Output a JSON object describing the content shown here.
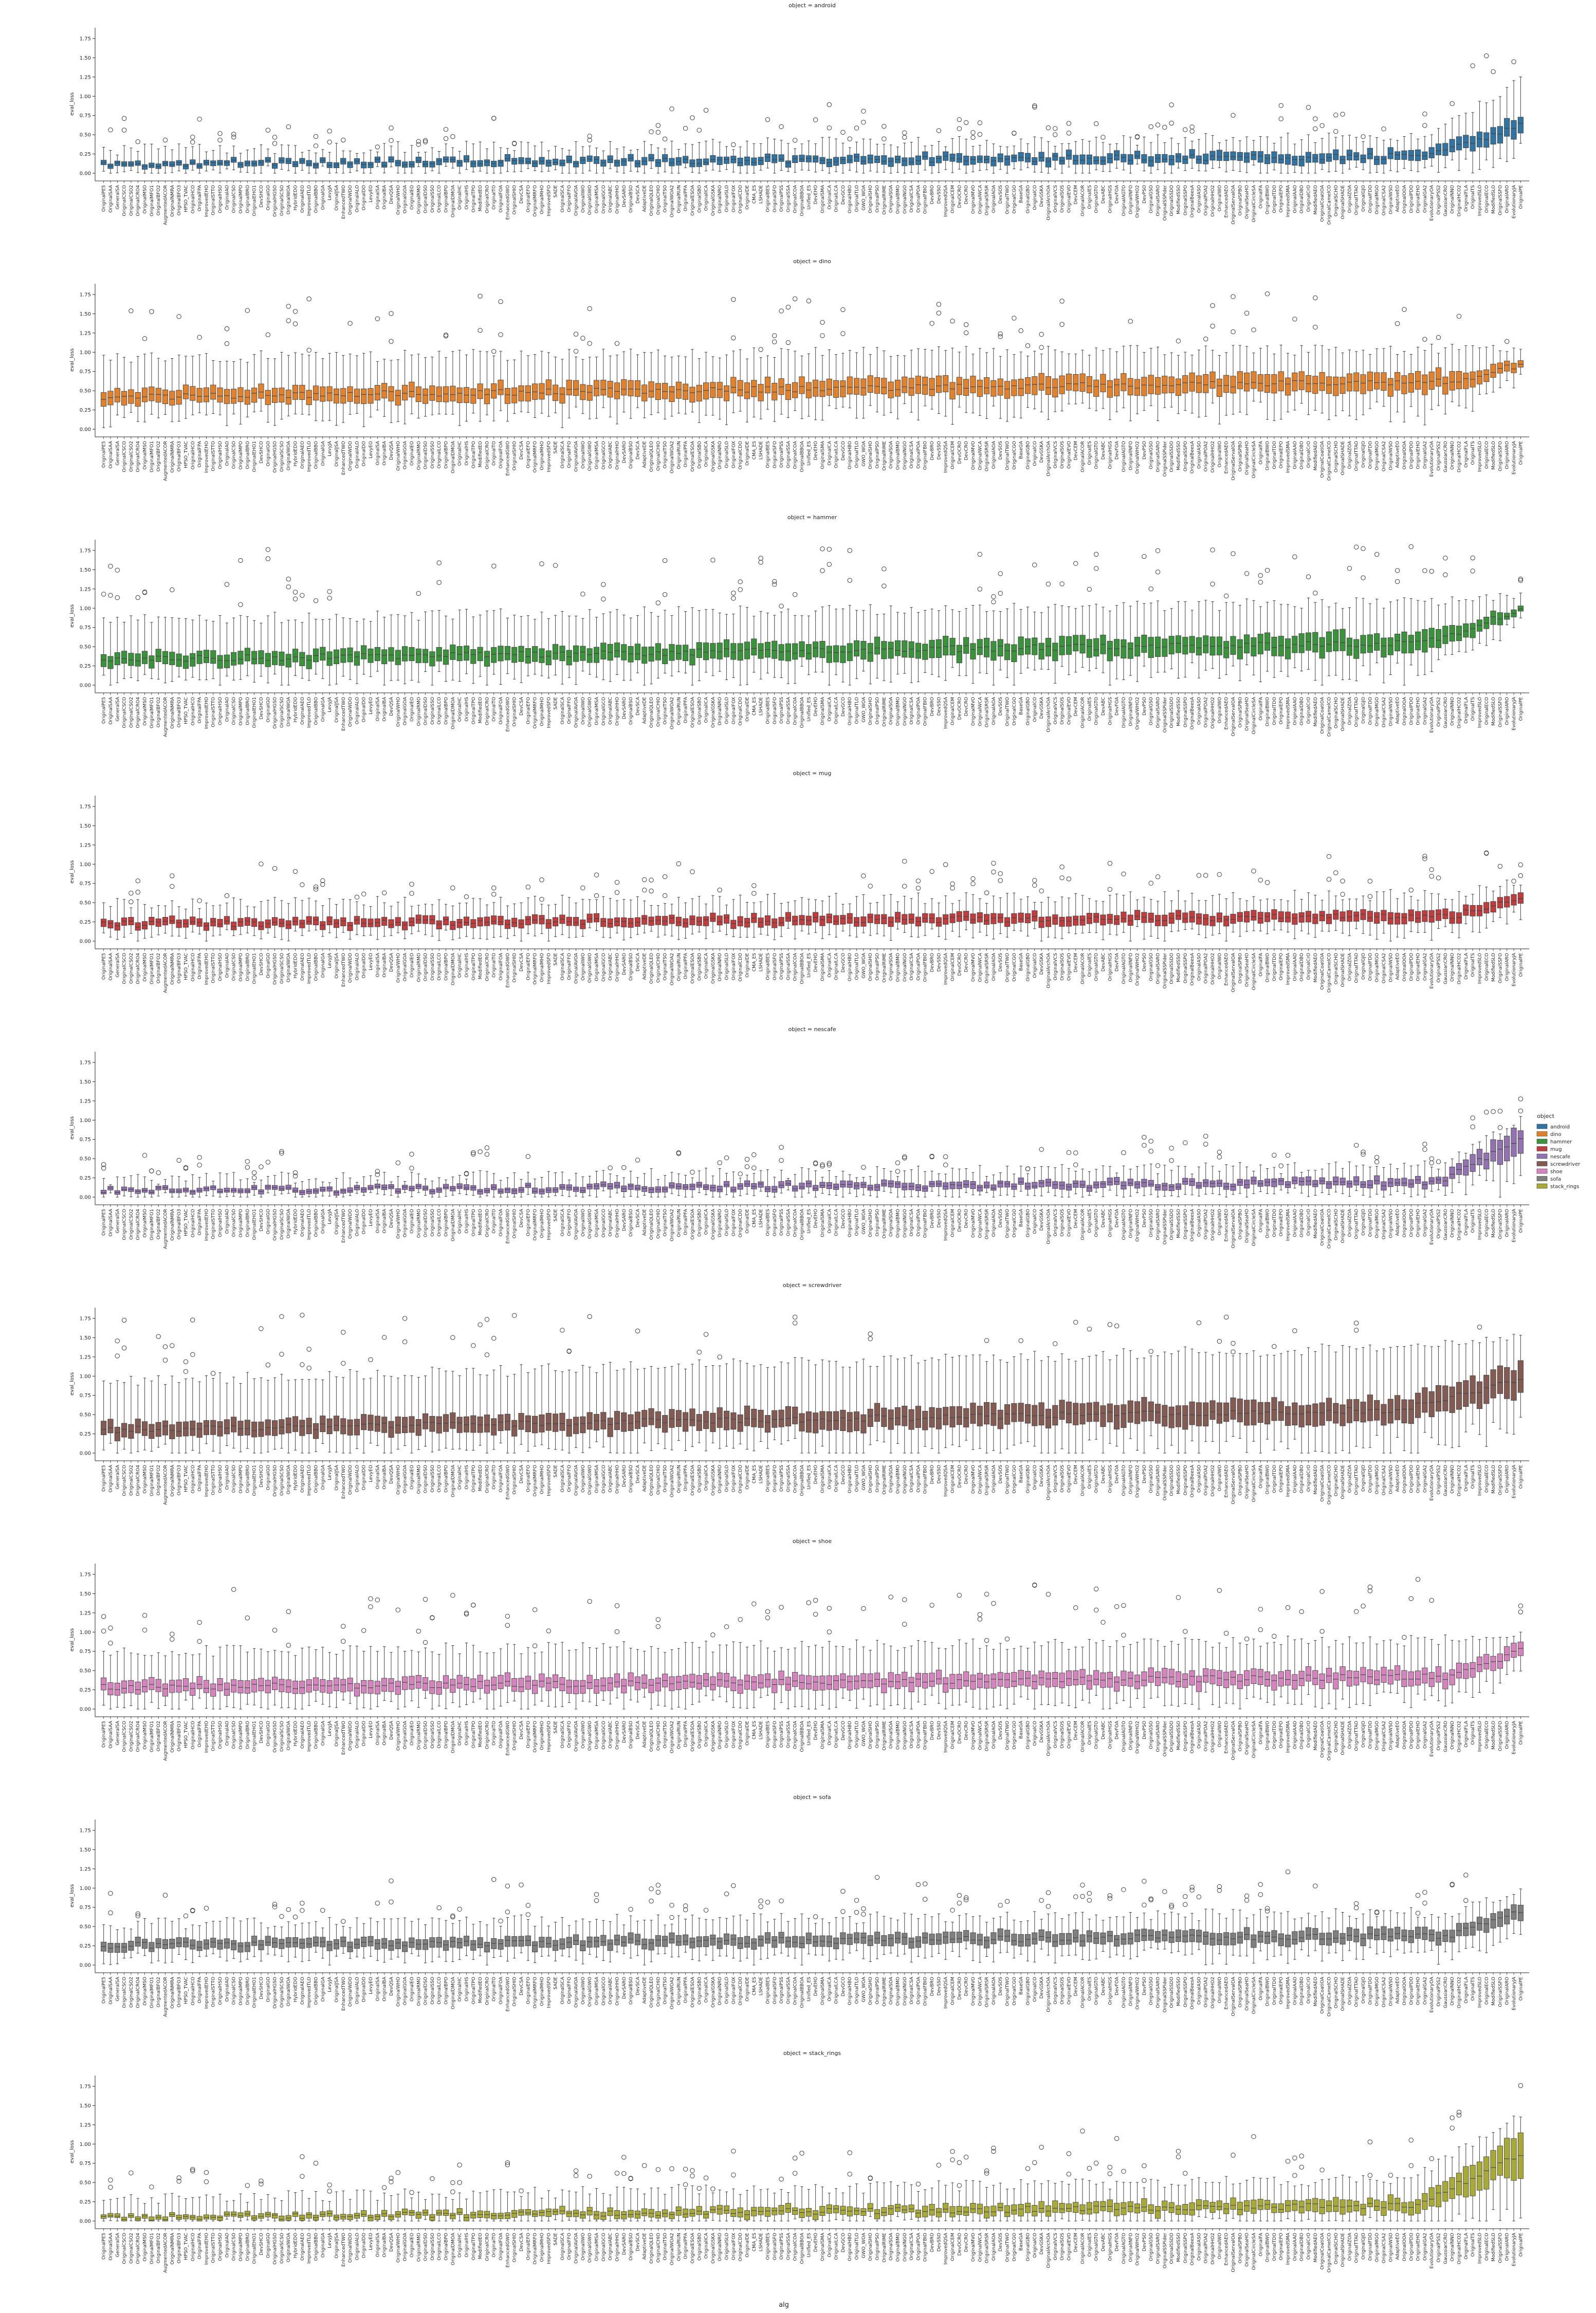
{
  "figure": {
    "xlabel": "alg",
    "ylabel": "eval_loss",
    "yticks": [
      "0.00",
      "0.25",
      "0.50",
      "0.75",
      "1.00",
      "1.25",
      "1.50",
      "1.75"
    ],
    "legend_title": "object",
    "legend_placement": "right"
  },
  "algs": [
    "OriginalPE5",
    "OriginalSAA",
    "GeneralSA",
    "OriginalCSCO",
    "OriginalCSO2",
    "OriginalCRO4",
    "OriginalMSO",
    "OriginalMFO1",
    "OriginalBFO2",
    "AugmentedACOR",
    "OriginalNMRA",
    "OriginalBFO3",
    "HPSO_TVAC",
    "OriginalHCO",
    "OriginalFPA",
    "ImprovedEHO",
    "OriginalSTTO",
    "OriginalHSO",
    "OriginalAO",
    "OriginalCSO",
    "OriginalMPO",
    "OriginalBRO",
    "OriginalEHO1",
    "DevSHCO",
    "OriginalGO",
    "OriginalHGSO",
    "OriginalSCSO",
    "OriginalWOA",
    "HybridEDO",
    "OriginalAEO",
    "ImprovedTLO",
    "OriginalBBO",
    "OriginalGA",
    "LevyJA",
    "OriginalJSA",
    "EnhancedTWO",
    "OriginalWDO",
    "OriginalALO",
    "OriginalDO",
    "LevyEO",
    "OriginalSA",
    "OriginalBA",
    "DevQSA",
    "OriginalWHO",
    "OriginalGOA",
    "OriginalEO",
    "OriginalRMO",
    "OriginalDSO",
    "OriginalSSO",
    "OriginalLCO",
    "OriginalBPO",
    "OriginalDMOA",
    "OriginalHC",
    "OriginalHS",
    "OriginalTPO",
    "ModifiedEO",
    "OriginalCRO",
    "OriginalTO",
    "OriginalFOA",
    "EnhancedGWO",
    "OriginalSHIO",
    "DevCSA",
    "OriginalEFO",
    "OriginalMRFO",
    "OriginalMHO",
    "ImprovedSFO",
    "SADE",
    "OriginalSCA",
    "OriginalFFO",
    "OriginalAVOA",
    "OriginalIWO",
    "OriginalGWO",
    "OriginalMSA",
    "OriginalGCO",
    "OriginalABC",
    "OriginalHHO",
    "DevSARO",
    "OriginalBSO",
    "DevSCA",
    "AdaptiveDE",
    "OriginalQLEO",
    "OriginalCHIO",
    "OriginalTSO",
    "OriginalWOA2",
    "OriginalRUN",
    "OriginalPFA",
    "OriginalESOA",
    "OriginalSBO",
    "OriginalICA",
    "OriginalGSKA",
    "OriginalNRO",
    "OriginalSLO",
    "OriginalFOX",
    "OriginalCDO",
    "OriginalDE",
    "CMA_ES",
    "LSHADE",
    "OriginalBES",
    "OriginalSFO",
    "OriginalPSS",
    "OriginalSSA",
    "OriginalCOA",
    "OriginalBBOA",
    "Unified_ES",
    "DevEHO",
    "OriginalSMA",
    "OriginalCA",
    "OriginalLCA",
    "DevGCO",
    "OriginalHBO",
    "OriginalTLO",
    "GWO_WOA",
    "OriginalSHO",
    "OriginalPSO",
    "OriginalRIME",
    "OriginalSOA",
    "OriginalBMO",
    "OriginalNGO",
    "OriginalCSA",
    "OriginalPOA",
    "OriginalFBIO",
    "DevBRO",
    "DevSSO",
    "ImprovedQSA",
    "OriginalCEM",
    "DevOCRO",
    "DevCRO",
    "OriginalMVO",
    "OriginalWCA",
    "OriginalSRSR",
    "OriginalAOA",
    "DevSOS",
    "OriginalTWO",
    "OriginalCGO",
    "BaseGA",
    "OriginalGBO",
    "OriginalCO",
    "DevGSKA",
    "OriginalArchOA",
    "OriginalVCS",
    "OriginalSOS",
    "OriginalEVO",
    "DevCEM",
    "OriginalACOR",
    "OriginalES",
    "OriginalGTO",
    "DevABC",
    "OriginalHGS",
    "DevFOA",
    "OriginalAGTO",
    "OriginalINFO",
    "OriginalWHO2",
    "DevPSO",
    "OriginalGSO",
    "OriginalSARO",
    "OriginalSSPider",
    "OriginalSSDO",
    "ModifiedSSO",
    "OriginalSSPO",
    "OriginalBeesA",
    "OriginalASO",
    "OriginalPOA2",
    "OriginalHHO2",
    "OriginalWO",
    "EnhancedAEO",
    "OriginalServalOA",
    "OriginalSPBO",
    "OriginalSeaHO",
    "OriginalCircleSA",
    "OriginalFA",
    "OriginalBWO",
    "OriginalTDO",
    "OriginalEPO",
    "ImprovedSMA",
    "OriginalAAO",
    "OriginalDBO",
    "OriginalCrO",
    "ModifiedAEO",
    "OriginalCoatiOA",
    "OriginalCamelCO",
    "OriginalSCHO",
    "OriginalSHADE",
    "OriginalZOA",
    "OriginalTTAO",
    "OriginalGJO",
    "OriginalFDO",
    "OriginalMGO",
    "OriginalCSA2",
    "OriginalWSO",
    "AdaptiveEO",
    "OriginalOOA",
    "OriginalPDO",
    "OriginalEHO",
    "OriginalGA2",
    "EvolutionaryOA",
    "OriginalPSS2",
    "GaussianCRO",
    "OriginalNNO",
    "OriginalHCO2",
    "OriginalFLA",
    "OriginalTS",
    "ImprovedSLO",
    "OriginalECO",
    "ModifiedSLO",
    "OriginalSSFO",
    "OriginalARO",
    "EvolutionaryJA",
    "OriginalPE"
  ],
  "chart_data": [
    {
      "type": "box",
      "title": "object = android",
      "series": "android",
      "color": "#3274a1",
      "ylabel": "eval_loss",
      "ylim": [
        -0.1,
        1.85
      ],
      "median": [
        0.12,
        0.22
      ],
      "iqr": [
        0.06,
        0.13
      ],
      "whisker_hi": [
        0.27,
        0.44
      ],
      "tail": {
        "count": 14,
        "median_end": 0.62,
        "iqr_end": 0.24,
        "whisker_end": 1.18
      }
    },
    {
      "type": "box",
      "title": "object = dino",
      "series": "dino",
      "color": "#e1812c",
      "ylabel": "eval_loss",
      "ylim": [
        -0.1,
        1.85
      ],
      "median": [
        0.42,
        0.62
      ],
      "iqr": [
        0.18,
        0.24
      ],
      "whisker_hi": [
        0.9,
        1.02
      ],
      "tail": {
        "count": 10,
        "median_end": 0.84,
        "iqr_end": 0.1,
        "whisker_end": 1.0
      }
    },
    {
      "type": "box",
      "title": "object = hammer",
      "series": "hammer",
      "color": "#3a923a",
      "ylabel": "eval_loss",
      "ylim": [
        -0.1,
        1.85
      ],
      "median": [
        0.33,
        0.55
      ],
      "iqr": [
        0.16,
        0.26
      ],
      "whisker_hi": [
        0.82,
        1.05
      ],
      "tail": {
        "count": 14,
        "median_end": 0.97,
        "iqr_end": 0.1,
        "whisker_end": 1.15
      }
    },
    {
      "type": "box",
      "title": "object = mug",
      "series": "mug",
      "color": "#c03d3e",
      "ylabel": "eval_loss",
      "ylim": [
        -0.1,
        1.85
      ],
      "median": [
        0.22,
        0.32
      ],
      "iqr": [
        0.1,
        0.14
      ],
      "whisker_hi": [
        0.45,
        0.58
      ],
      "tail": {
        "count": 10,
        "median_end": 0.55,
        "iqr_end": 0.14,
        "whisker_end": 0.75
      }
    },
    {
      "type": "box",
      "title": "object = nescafe",
      "series": "nescafe",
      "color": "#9372b2",
      "ylabel": "eval_loss",
      "ylim": [
        -0.1,
        1.85
      ],
      "median": [
        0.08,
        0.19
      ],
      "iqr": [
        0.05,
        0.1
      ],
      "whisker_hi": [
        0.2,
        0.37
      ],
      "tail": {
        "count": 12,
        "median_end": 0.75,
        "iqr_end": 0.34,
        "whisker_end": 1.0
      }
    },
    {
      "type": "box",
      "title": "object = screwdriver",
      "series": "screwdriver",
      "color": "#845b53",
      "ylabel": "eval_loss",
      "ylim": [
        -0.1,
        1.85
      ],
      "median": [
        0.3,
        0.56
      ],
      "iqr": [
        0.18,
        0.3
      ],
      "whisker_hi": [
        0.9,
        1.35
      ],
      "tail": {
        "count": 18,
        "median_end": 0.95,
        "iqr_end": 0.4,
        "whisker_end": 1.5
      }
    },
    {
      "type": "box",
      "title": "object = shoe",
      "series": "shoe",
      "color": "#d684bd",
      "ylabel": "eval_loss",
      "ylim": [
        -0.1,
        1.85
      ],
      "median": [
        0.28,
        0.42
      ],
      "iqr": [
        0.16,
        0.2
      ],
      "whisker_hi": [
        0.72,
        0.86
      ],
      "tail": {
        "count": 10,
        "median_end": 0.75,
        "iqr_end": 0.18,
        "whisker_end": 0.92
      }
    },
    {
      "type": "box",
      "title": "object = sofa",
      "series": "sofa",
      "color": "#7f7f7f",
      "ylabel": "eval_loss",
      "ylim": [
        -0.1,
        1.85
      ],
      "median": [
        0.25,
        0.38
      ],
      "iqr": [
        0.12,
        0.16
      ],
      "whisker_hi": [
        0.5,
        0.65
      ],
      "tail": {
        "count": 10,
        "median_end": 0.72,
        "iqr_end": 0.2,
        "whisker_end": 0.95
      }
    },
    {
      "type": "box",
      "title": "object = stack_rings",
      "series": "stack_rings",
      "color": "#a9aa35",
      "ylabel": "eval_loss",
      "ylim": [
        -0.1,
        1.85
      ],
      "median": [
        0.04,
        0.2
      ],
      "iqr": [
        0.05,
        0.16
      ],
      "whisker_hi": [
        0.25,
        0.52
      ],
      "tail": {
        "count": 16,
        "median_end": 0.85,
        "iqr_end": 0.55,
        "whisker_end": 1.35
      }
    }
  ],
  "legend": {
    "title": "object",
    "entries": [
      {
        "name": "android",
        "color": "#3274a1"
      },
      {
        "name": "dino",
        "color": "#e1812c"
      },
      {
        "name": "hammer",
        "color": "#3a923a"
      },
      {
        "name": "mug",
        "color": "#c03d3e"
      },
      {
        "name": "nescafe",
        "color": "#9372b2"
      },
      {
        "name": "screwdriver",
        "color": "#845b53"
      },
      {
        "name": "shoe",
        "color": "#d684bd"
      },
      {
        "name": "sofa",
        "color": "#7f7f7f"
      },
      {
        "name": "stack_rings",
        "color": "#a9aa35"
      }
    ]
  }
}
